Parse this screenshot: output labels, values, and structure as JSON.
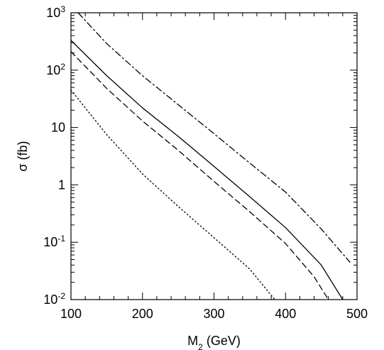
{
  "chart_data": {
    "type": "line",
    "title": "",
    "xlabel": {
      "main": "M",
      "subscript": "2",
      "suffix": " (GeV)"
    },
    "ylabel": "σ (fb)",
    "xlim": [
      100,
      500
    ],
    "ylim": [
      0.01,
      1000
    ],
    "yscale": "log",
    "grid": false,
    "legend": "none",
    "x_ticks": [
      {
        "value": 100,
        "label": "100"
      },
      {
        "value": 200,
        "label": "200"
      },
      {
        "value": 300,
        "label": "300"
      },
      {
        "value": 400,
        "label": "400"
      },
      {
        "value": 500,
        "label": "500"
      }
    ],
    "y_ticks": [
      {
        "value": 0.01,
        "base": "10",
        "exp": "-2"
      },
      {
        "value": 0.1,
        "base": "10",
        "exp": "-1"
      },
      {
        "value": 1,
        "base": "1",
        "exp": ""
      },
      {
        "value": 10,
        "base": "10",
        "exp": ""
      },
      {
        "value": 100,
        "base": "10",
        "exp": "2"
      },
      {
        "value": 1000,
        "base": "10",
        "exp": "3"
      }
    ],
    "series": [
      {
        "style": "dashdot",
        "color": "#000000",
        "x": [
          110,
          150,
          200,
          250,
          300,
          350,
          400,
          450,
          490
        ],
        "y": [
          1000,
          290,
          80,
          25,
          7.8,
          2.4,
          0.75,
          0.17,
          0.045
        ]
      },
      {
        "style": "solid",
        "color": "#000000",
        "x": [
          100,
          150,
          200,
          250,
          300,
          350,
          400,
          450,
          480
        ],
        "y": [
          330,
          80,
          22,
          7.0,
          2.1,
          0.62,
          0.18,
          0.04,
          0.01
        ]
      },
      {
        "style": "dashed",
        "color": "#000000",
        "x": [
          100,
          150,
          200,
          250,
          300,
          350,
          400,
          440,
          460
        ],
        "y": [
          210,
          48,
          13,
          4.0,
          1.15,
          0.34,
          0.095,
          0.025,
          0.01
        ]
      },
      {
        "style": "dotted",
        "color": "#000000",
        "x": [
          100,
          150,
          200,
          250,
          300,
          350,
          385
        ],
        "y": [
          45,
          7.5,
          1.55,
          0.42,
          0.12,
          0.034,
          0.01
        ]
      }
    ]
  }
}
